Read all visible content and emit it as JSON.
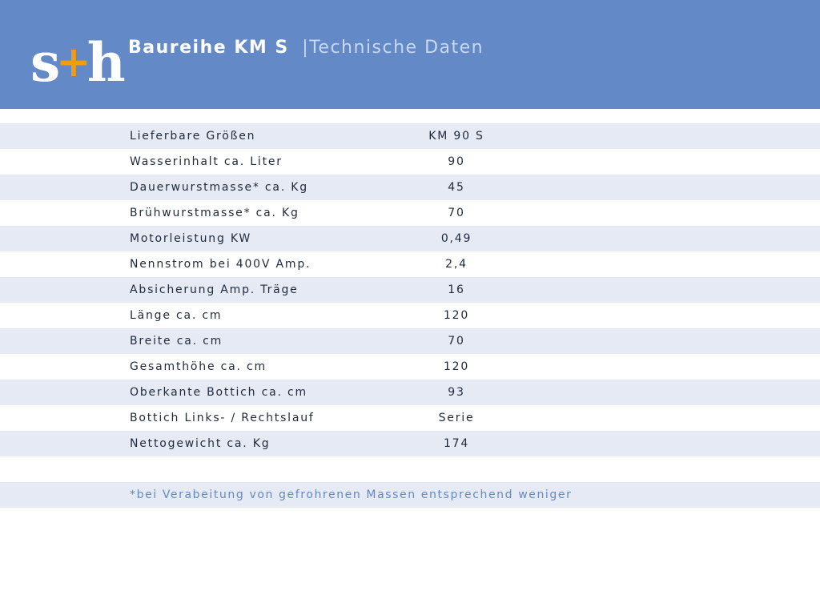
{
  "header": {
    "logo_left": "s",
    "logo_plus": "+",
    "logo_right": "h",
    "title": "Baureihe KM S",
    "separator": "|",
    "subtitle": "Technische Daten",
    "background_color": "#6389c7",
    "logo_accent_color": "#f39c12"
  },
  "table": {
    "rows": [
      {
        "label": "Lieferbare Größen",
        "value": "KM 90 S"
      },
      {
        "label": "Wasserinhalt ca. Liter",
        "value": "90"
      },
      {
        "label": "Dauerwurstmasse* ca. Kg",
        "value": "45"
      },
      {
        "label": "Brühwurstmasse* ca. Kg",
        "value": "70"
      },
      {
        "label": "Motorleistung KW",
        "value": "0,49"
      },
      {
        "label": "Nennstrom bei 400V Amp.",
        "value": "2,4"
      },
      {
        "label": "Absicherung Amp. Träge",
        "value": "16"
      },
      {
        "label": "Länge ca. cm",
        "value": "120"
      },
      {
        "label": "Breite ca. cm",
        "value": "70"
      },
      {
        "label": "Gesamthöhe ca. cm",
        "value": "120"
      },
      {
        "label": "Oberkante Bottich ca. cm",
        "value": "93"
      },
      {
        "label": "Bottich Links- / Rechtslauf",
        "value": "Serie"
      },
      {
        "label": "Nettogewicht ca. Kg",
        "value": "174"
      }
    ]
  },
  "footnote": "*bei Verabeitung von gefrohrenen Massen entsprechend weniger"
}
